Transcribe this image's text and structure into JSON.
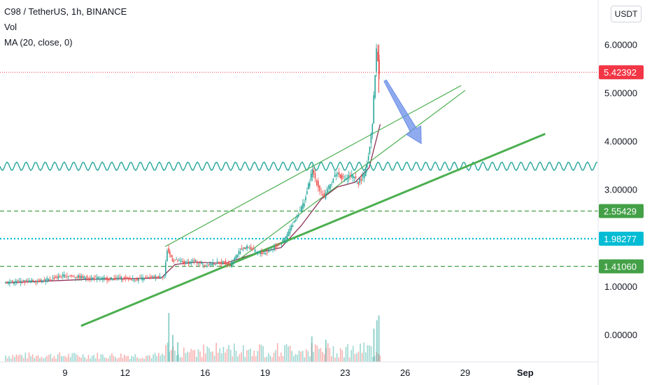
{
  "header": {
    "symbol": "C98 / TetherUS, 1h, BINANCE",
    "volume_label": "Vol",
    "indicator_label": "MA (20, close, 0)",
    "currency_button": "USDT"
  },
  "colors": {
    "up": "#26a69a",
    "down": "#ef5350",
    "green_line": "#4caf50",
    "level_line": "#43a047",
    "cyan_line": "#00bcd4",
    "red_price": "#f23645",
    "arrow": "#6a8ee8",
    "ma_line": "#8e2f57"
  },
  "chart_data": {
    "type": "candlestick",
    "title": "C98 / TetherUS, 1h, BINANCE",
    "y_ticks": [
      "6.00000",
      "5.00000",
      "4.00000",
      "3.00000",
      "1.00000",
      "0.00000"
    ],
    "y_tick_values": [
      6,
      5,
      4,
      3,
      1,
      0
    ],
    "x_ticks": [
      "9",
      "12",
      "16",
      "19",
      "23",
      "26",
      "29",
      "Sep"
    ],
    "x_tick_days": [
      9,
      12,
      16,
      19,
      23,
      26,
      29,
      32
    ],
    "price_badges": [
      {
        "label": "5.42392",
        "value": 5.42392,
        "kind": "current",
        "color": "#f23645"
      },
      {
        "label": "2.55429",
        "value": 2.55429,
        "kind": "level",
        "color": "#43a047"
      },
      {
        "label": "1.98277",
        "value": 1.98277,
        "kind": "cyan",
        "color": "#00bcd4"
      },
      {
        "label": "1.41060",
        "value": 1.4106,
        "kind": "level",
        "color": "#43a047"
      }
    ],
    "price_path": [
      [
        6.0,
        1.08
      ],
      [
        8.0,
        1.12
      ],
      [
        9.0,
        1.22
      ],
      [
        10.0,
        1.18
      ],
      [
        11.0,
        1.15
      ],
      [
        12.0,
        1.17
      ],
      [
        12.5,
        1.14
      ],
      [
        13.5,
        1.18
      ],
      [
        14.0,
        1.22
      ],
      [
        14.15,
        1.75
      ],
      [
        14.4,
        1.55
      ],
      [
        15.0,
        1.48
      ],
      [
        15.5,
        1.52
      ],
      [
        16.0,
        1.45
      ],
      [
        16.5,
        1.47
      ],
      [
        17.0,
        1.5
      ],
      [
        17.3,
        1.44
      ],
      [
        17.8,
        1.75
      ],
      [
        18.2,
        1.82
      ],
      [
        18.6,
        1.7
      ],
      [
        19.0,
        1.68
      ],
      [
        19.5,
        1.8
      ],
      [
        20.0,
        1.95
      ],
      [
        20.5,
        2.35
      ],
      [
        21.0,
        2.75
      ],
      [
        21.4,
        3.4
      ],
      [
        21.7,
        3.05
      ],
      [
        22.0,
        2.85
      ],
      [
        22.3,
        3.1
      ],
      [
        22.6,
        3.35
      ],
      [
        23.0,
        3.2
      ],
      [
        23.3,
        3.3
      ],
      [
        23.7,
        3.15
      ],
      [
        24.0,
        3.3
      ],
      [
        24.2,
        3.7
      ],
      [
        24.4,
        4.4
      ],
      [
        24.6,
        5.9
      ],
      [
        24.75,
        5.42
      ]
    ],
    "ma_path": [
      [
        6.0,
        1.07
      ],
      [
        10.0,
        1.14
      ],
      [
        13.8,
        1.17
      ],
      [
        14.5,
        1.45
      ],
      [
        15.5,
        1.5
      ],
      [
        17.0,
        1.47
      ],
      [
        18.5,
        1.68
      ],
      [
        19.8,
        1.8
      ],
      [
        20.8,
        2.25
      ],
      [
        21.8,
        2.8
      ],
      [
        22.6,
        3.05
      ],
      [
        23.5,
        3.15
      ],
      [
        24.2,
        3.45
      ],
      [
        24.75,
        4.35
      ]
    ],
    "volume_bars": [
      {
        "day": 14.15,
        "value": 1.0
      },
      {
        "day": 14.35,
        "value": 0.55
      },
      {
        "day": 14.6,
        "value": 0.4
      },
      {
        "day": 21.3,
        "value": 0.52
      },
      {
        "day": 22.0,
        "value": 0.45
      },
      {
        "day": 24.55,
        "value": 0.85
      },
      {
        "day": 24.65,
        "value": 0.95
      },
      {
        "day": 24.4,
        "value": 0.68
      }
    ],
    "trendlines": [
      {
        "from": [
          9.8,
          0.18
        ],
        "to": [
          33.0,
          4.15
        ],
        "style": "thick"
      },
      {
        "from": [
          14.0,
          1.82
        ],
        "to": [
          28.8,
          5.15
        ],
        "style": "thin"
      },
      {
        "from": [
          17.2,
          1.4
        ],
        "to": [
          29.0,
          5.05
        ],
        "style": "thin"
      }
    ],
    "wave_level": 3.48,
    "arrow": {
      "from": [
        25.0,
        5.25
      ],
      "to": [
        26.8,
        3.95
      ]
    }
  }
}
